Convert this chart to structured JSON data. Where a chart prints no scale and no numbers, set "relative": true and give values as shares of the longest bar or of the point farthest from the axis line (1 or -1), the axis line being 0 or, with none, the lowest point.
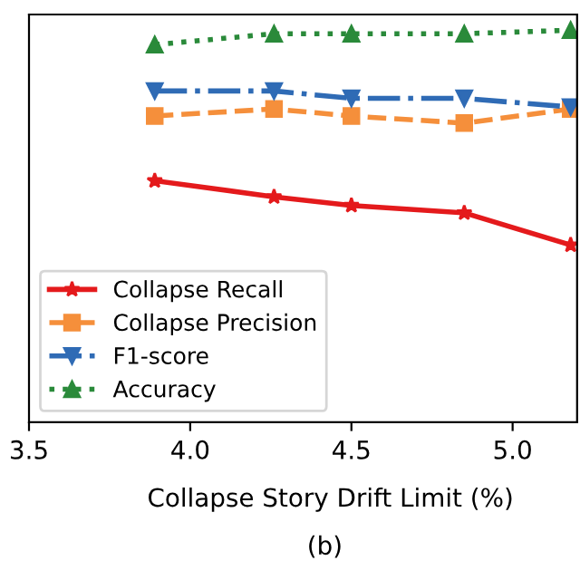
{
  "chart_data": {
    "type": "line",
    "relative": true,
    "xlabel": "Collapse Story Drift Limit (%)",
    "annotations": [
      "(b)"
    ],
    "x": [
      3.89,
      4.26,
      4.5,
      4.85,
      5.18
    ],
    "xlim": [
      3.5,
      5.2
    ],
    "xticks": [
      {
        "value": 3.5,
        "label": "3.5"
      },
      {
        "value": 4.0,
        "label": "4.0"
      },
      {
        "value": 4.5,
        "label": "4.5"
      },
      {
        "value": 5.0,
        "label": "5.0"
      }
    ],
    "series": [
      {
        "name": "Collapse Recall",
        "color": "#e41a1c",
        "marker": "star",
        "line_style": "solid",
        "values": [
          0.616,
          0.575,
          0.553,
          0.534,
          0.452
        ]
      },
      {
        "name": "Collapse Precision",
        "color": "#f58f3b",
        "marker": "square",
        "line_style": "dashed",
        "values": [
          0.781,
          0.799,
          0.781,
          0.763,
          0.799
        ]
      },
      {
        "name": "F1-score",
        "color": "#2f6bb5",
        "marker": "triangle_down",
        "line_style": "dashdot",
        "values": [
          0.845,
          0.845,
          0.826,
          0.826,
          0.804
        ]
      },
      {
        "name": "Accuracy",
        "color": "#2a8a3a",
        "marker": "triangle",
        "line_style": "dotted",
        "values": [
          0.963,
          0.991,
          0.991,
          0.991,
          1
        ]
      }
    ],
    "legend": "bottom left",
    "grid": false
  }
}
